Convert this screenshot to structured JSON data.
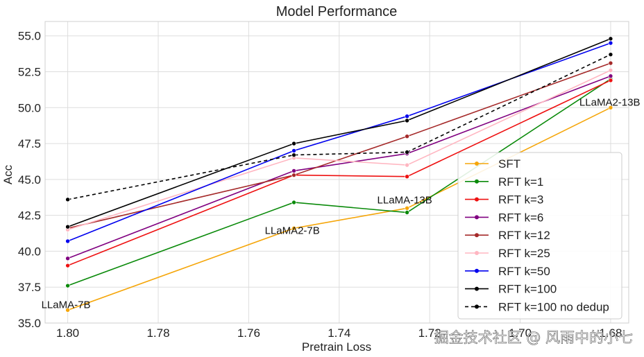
{
  "chart_data": {
    "type": "line",
    "title": "Model Performance",
    "xlabel": "Pretrain Loss",
    "ylabel": "Acc",
    "x": [
      1.8,
      1.75,
      1.725,
      1.68
    ],
    "x_reversed": true,
    "xlim": [
      1.805,
      1.676
    ],
    "ylim": [
      35.0,
      56.0
    ],
    "xticks": [
      1.8,
      1.78,
      1.76,
      1.74,
      1.72,
      1.7,
      1.68
    ],
    "xtick_labels": [
      "1.80",
      "1.78",
      "1.76",
      "1.74",
      "1.72",
      "1.70",
      "1.68"
    ],
    "yticks": [
      35.0,
      37.5,
      40.0,
      42.5,
      45.0,
      47.5,
      50.0,
      52.5,
      55.0
    ],
    "ytick_labels": [
      "35.0",
      "37.5",
      "40.0",
      "42.5",
      "45.0",
      "47.5",
      "50.0",
      "52.5",
      "55.0"
    ],
    "grid": true,
    "legend_position": "lower-right",
    "series": [
      {
        "name": "SFT",
        "color": "#f5a60a",
        "dash": false,
        "values": [
          35.9,
          41.6,
          43.0,
          50.0
        ]
      },
      {
        "name": "RFT k=1",
        "color": "#0a8a0a",
        "dash": false,
        "values": [
          37.6,
          43.4,
          42.7,
          52.0
        ]
      },
      {
        "name": "RFT k=3",
        "color": "#ee1111",
        "dash": false,
        "values": [
          39.0,
          45.3,
          45.2,
          51.9
        ]
      },
      {
        "name": "RFT k=6",
        "color": "#800080",
        "dash": false,
        "values": [
          39.5,
          45.6,
          46.8,
          52.2
        ]
      },
      {
        "name": "RFT k=12",
        "color": "#a52a2a",
        "dash": false,
        "values": [
          41.6,
          45.3,
          48.0,
          53.1
        ]
      },
      {
        "name": "RFT k=25",
        "color": "#ffb6c1",
        "dash": false,
        "values": [
          41.5,
          46.5,
          46.0,
          52.6
        ]
      },
      {
        "name": "RFT k=50",
        "color": "#0000ee",
        "dash": false,
        "values": [
          40.7,
          47.0,
          49.4,
          54.5
        ]
      },
      {
        "name": "RFT k=100",
        "color": "#000000",
        "dash": false,
        "values": [
          41.7,
          47.5,
          49.1,
          54.8
        ]
      },
      {
        "name": "RFT k=100 no dedup",
        "color": "#000000",
        "dash": true,
        "values": [
          43.6,
          46.7,
          46.9,
          53.7
        ]
      }
    ],
    "annotations": [
      {
        "text": "LLaMA-7B",
        "x": 1.8,
        "y": 35.9
      },
      {
        "text": "LLaMA2-7B",
        "x": 1.75,
        "y": 41.6
      },
      {
        "text": "LLaMA-13B",
        "x": 1.725,
        "y": 43.0
      },
      {
        "text": "LLaMA2-13B",
        "x": 1.68,
        "y": 50.0
      }
    ]
  },
  "watermark": "掘金技术社区 @ 风雨中的小七"
}
